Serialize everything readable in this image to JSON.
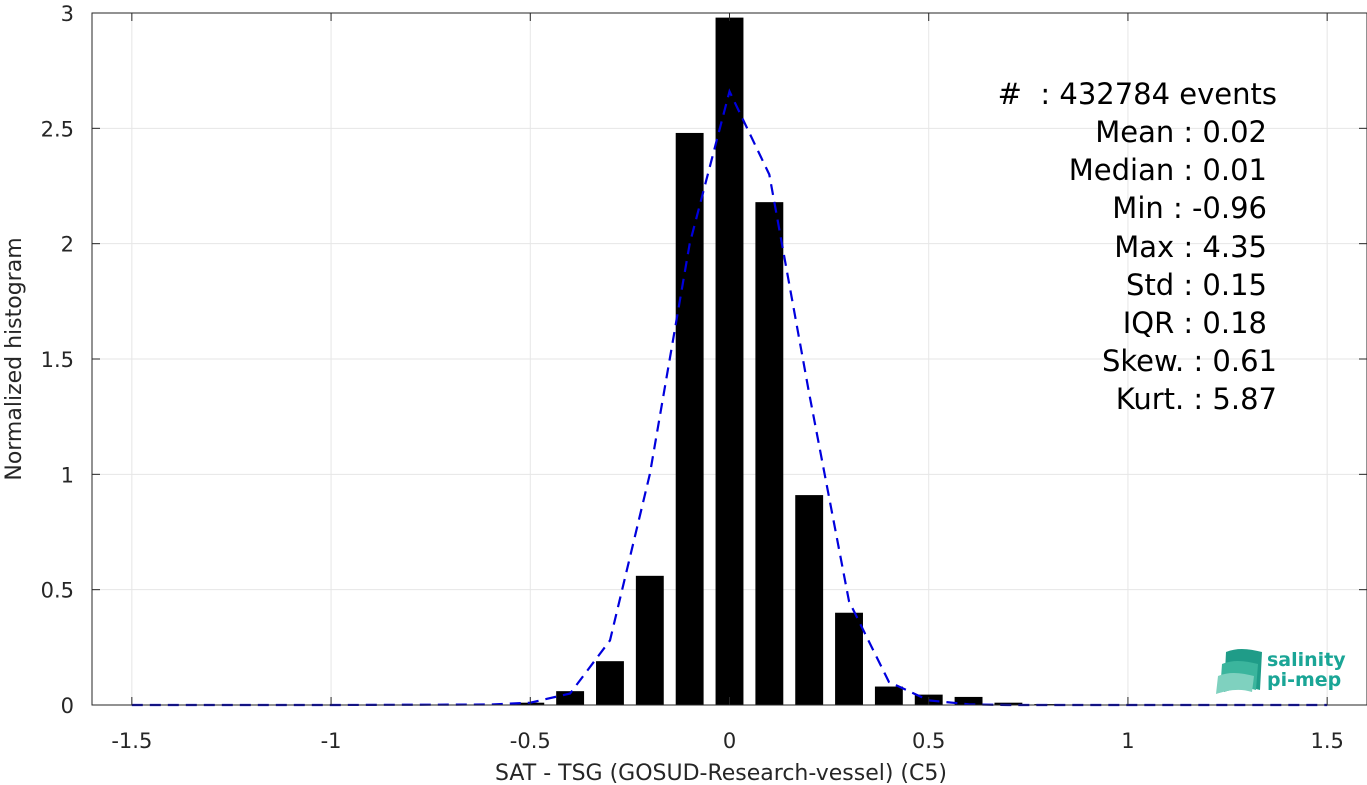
{
  "chart_data": {
    "type": "bar",
    "title": "",
    "xlabel": "SAT - TSG (GOSUD-Research-vessel) (C5)",
    "ylabel": "Normalized histogram",
    "xlim": [
      -1.6,
      1.6
    ],
    "ylim": [
      0,
      3
    ],
    "grid": true,
    "x_ticks": [
      -1.5,
      -1,
      -0.5,
      0,
      0.5,
      1,
      1.5
    ],
    "x_tick_labels": [
      "-1.5",
      "-1",
      "-0.5",
      "0",
      "0.5",
      "1",
      "1.5"
    ],
    "y_ticks": [
      0,
      0.5,
      1,
      1.5,
      2,
      2.5,
      3
    ],
    "y_tick_labels": [
      "0",
      "0.5",
      "1",
      "1.5",
      "2",
      "2.5",
      "3"
    ],
    "bar_width": 0.07,
    "bars": {
      "x": [
        -1.5,
        -1.4,
        -1.3,
        -1.2,
        -1.1,
        -1.0,
        -0.9,
        -0.8,
        -0.7,
        -0.6,
        -0.5,
        -0.4,
        -0.3,
        -0.2,
        -0.1,
        0.0,
        0.1,
        0.2,
        0.3,
        0.4,
        0.5,
        0.6,
        0.7,
        0.8,
        0.9,
        1.0,
        1.1,
        1.2,
        1.3,
        1.4,
        1.5
      ],
      "values": [
        0,
        0,
        0,
        0,
        0,
        0,
        0,
        0,
        0,
        0.002,
        0.01,
        0.06,
        0.19,
        0.56,
        2.48,
        2.98,
        2.18,
        0.91,
        0.4,
        0.08,
        0.045,
        0.035,
        0.01,
        0.004,
        0.002,
        0.001,
        0.001,
        0,
        0,
        0,
        0
      ]
    },
    "fit_line": {
      "style": "dashed",
      "color": "#0000dd",
      "x": [
        -1.5,
        -1.0,
        -0.6,
        -0.5,
        -0.4,
        -0.3,
        -0.2,
        -0.1,
        0.0,
        0.1,
        0.2,
        0.3,
        0.4,
        0.5,
        0.6,
        0.7,
        1.0,
        1.5
      ],
      "values": [
        0,
        0,
        0.002,
        0.01,
        0.05,
        0.28,
        1.0,
        2.0,
        2.66,
        2.3,
        1.35,
        0.45,
        0.1,
        0.02,
        0.003,
        0.0,
        0.0,
        0.0
      ]
    },
    "bar_color": "#000000"
  },
  "stats": {
    "count_line": "#  : 432784 events",
    "mean": "Mean : 0.02",
    "median": "Median : 0.01",
    "min": "Min : -0.96",
    "max": "Max : 4.35",
    "std": "Std : 0.15",
    "iqr": "IQR : 0.18",
    "skew": "Skew. : 0.61",
    "kurt": "Kurt. : 5.87"
  },
  "logo": {
    "line1": "salinity",
    "line2": "pi-mep",
    "color": "#1aa596"
  }
}
